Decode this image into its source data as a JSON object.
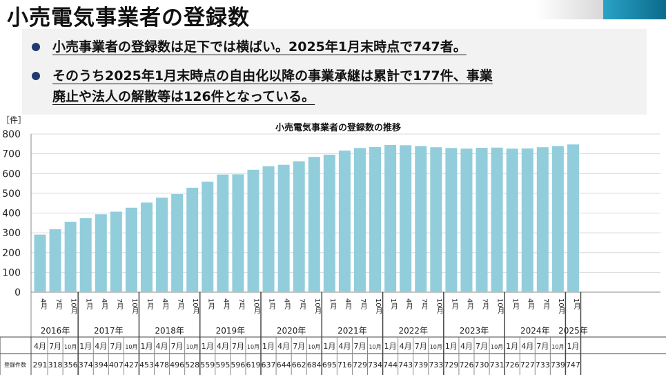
{
  "title": "小売電気事業者の登録数",
  "bullets": [
    {
      "line1": "小売事業者の登録数は足下では横ばい。2025年1月末時点で747者。"
    },
    {
      "line1": "そのうち2025年1月末時点の自由化以降の事業承継は累計で177件、事業",
      "line2": "廃止や法人の解散等は126件となっている。"
    }
  ],
  "colors": {
    "bar": "#92cddc",
    "bullet": "#1f3a6e"
  },
  "chart_data": {
    "type": "bar",
    "title": "小売電気事業者の登録数の推移",
    "ylabel": "［件］",
    "ylim": [
      0,
      800
    ],
    "yticks": [
      0,
      100,
      200,
      300,
      400,
      500,
      600,
      700,
      800
    ],
    "grid": true,
    "row_label": "登録件数",
    "years": [
      {
        "label": "2016年",
        "months": [
          "4月",
          "7月",
          "10月"
        ]
      },
      {
        "label": "2017年",
        "months": [
          "1月",
          "4月",
          "7月",
          "10月"
        ]
      },
      {
        "label": "2018年",
        "months": [
          "1月",
          "4月",
          "7月",
          "10月"
        ]
      },
      {
        "label": "2019年",
        "months": [
          "1月",
          "4月",
          "7月",
          "10月"
        ]
      },
      {
        "label": "2020年",
        "months": [
          "1月",
          "4月",
          "7月",
          "10月"
        ]
      },
      {
        "label": "2021年",
        "months": [
          "1月",
          "4月",
          "7月",
          "10月"
        ]
      },
      {
        "label": "2022年",
        "months": [
          "1月",
          "4月",
          "7月",
          "10月"
        ]
      },
      {
        "label": "2023年",
        "months": [
          "1月",
          "4月",
          "7月",
          "10月"
        ]
      },
      {
        "label": "2024年",
        "months": [
          "1月",
          "4月",
          "7月",
          "10月"
        ]
      },
      {
        "label": "2025年",
        "months": [
          "1月"
        ]
      }
    ],
    "values": [
      291,
      318,
      356,
      374,
      394,
      407,
      427,
      453,
      478,
      496,
      528,
      559,
      595,
      596,
      619,
      637,
      644,
      662,
      684,
      695,
      716,
      729,
      734,
      744,
      743,
      739,
      733,
      729,
      726,
      730,
      731,
      726,
      727,
      733,
      739,
      747
    ]
  }
}
